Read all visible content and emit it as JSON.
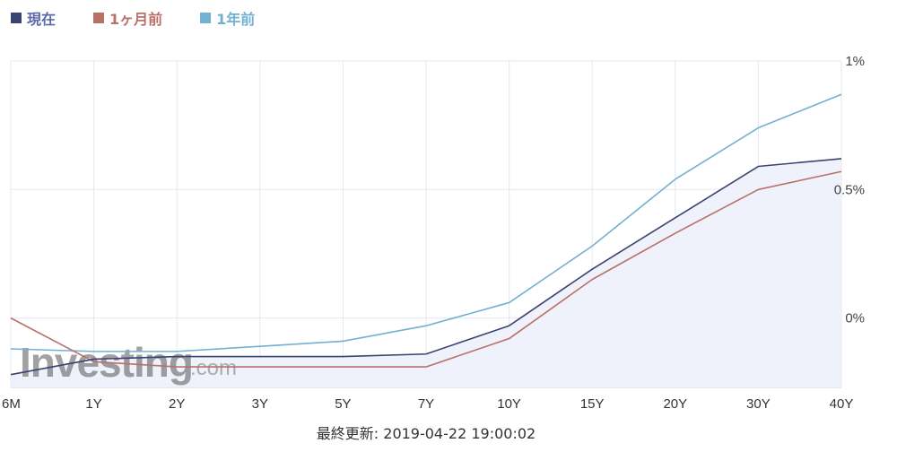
{
  "legend": [
    {
      "label": "現在",
      "color": "#3b4371",
      "text_color": "#5c6aa8"
    },
    {
      "label": "1ヶ月前",
      "color": "#b97069",
      "text_color": "#b97069"
    },
    {
      "label": "1年前",
      "color": "#72b1d1",
      "text_color": "#72b1d1"
    }
  ],
  "watermark": {
    "main": "Investing",
    "suffix": ".com"
  },
  "footer": {
    "text": "最終更新: 2019-04-22 19:00:02"
  },
  "chart_data": {
    "type": "line",
    "categories": [
      "6M",
      "1Y",
      "2Y",
      "3Y",
      "5Y",
      "7Y",
      "10Y",
      "15Y",
      "20Y",
      "30Y",
      "40Y"
    ],
    "y_ticks": [
      {
        "value": 0,
        "label": "0%"
      },
      {
        "value": 0.5,
        "label": "0.5%"
      },
      {
        "value": 1,
        "label": "1%"
      }
    ],
    "ylim": [
      -0.27,
      1
    ],
    "grid": true,
    "legend_position": "top-left",
    "series": [
      {
        "name": "現在",
        "color": "#3b4371",
        "fill": "#eef1fb",
        "values": [
          -0.22,
          -0.16,
          -0.15,
          -0.15,
          -0.15,
          -0.14,
          -0.03,
          0.19,
          0.39,
          0.59,
          0.62
        ]
      },
      {
        "name": "1ヶ月前",
        "color": "#b97069",
        "values": [
          0.0,
          -0.17,
          -0.19,
          -0.19,
          -0.19,
          -0.19,
          -0.08,
          0.15,
          0.33,
          0.5,
          0.57
        ]
      },
      {
        "name": "1年前",
        "color": "#72b1d1",
        "values": [
          -0.12,
          -0.13,
          -0.13,
          -0.11,
          -0.09,
          -0.03,
          0.06,
          0.28,
          0.54,
          0.74,
          0.87
        ]
      }
    ]
  }
}
